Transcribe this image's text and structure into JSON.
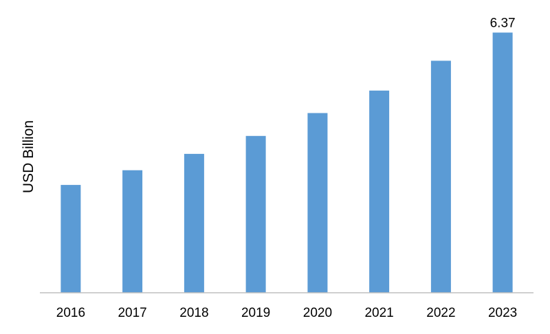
{
  "chart_data": {
    "type": "bar",
    "title": "",
    "xlabel": "",
    "ylabel": "USD Billion",
    "categories": [
      "2016",
      "2017",
      "2018",
      "2019",
      "2020",
      "2021",
      "2022",
      "2023"
    ],
    "values": [
      2.64,
      3.0,
      3.4,
      3.84,
      4.4,
      4.95,
      5.68,
      6.37
    ],
    "data_labels": [
      "",
      "",
      "",
      "",
      "",
      "",
      "",
      "6.37"
    ],
    "ylim": [
      0,
      7.0
    ],
    "grid": false,
    "legend": "none",
    "bar_color": "#5B9BD5",
    "axis_color": "#BFBFBF"
  }
}
